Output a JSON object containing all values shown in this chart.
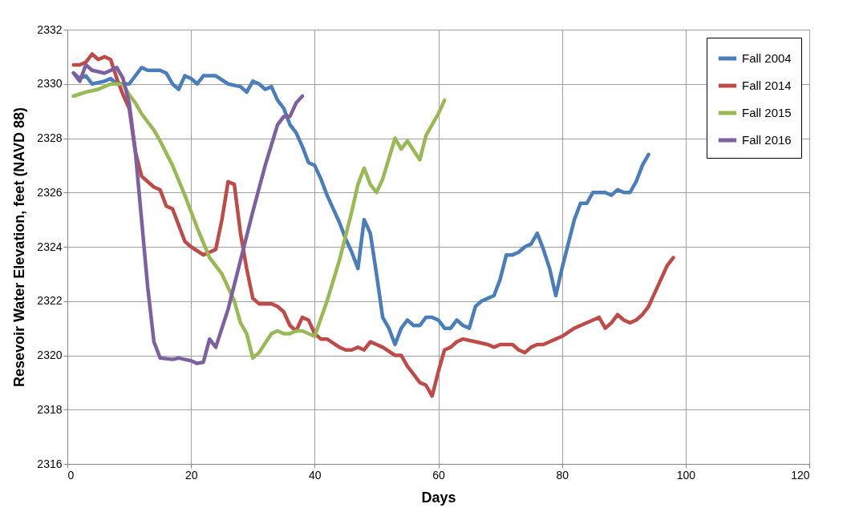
{
  "chart_data": {
    "type": "line",
    "xlabel": "Days",
    "ylabel": "Resevoir Water Elevation, feet (NAVD 88)",
    "xlim": [
      0,
      120
    ],
    "xticks": [
      0,
      20,
      40,
      60,
      80,
      100,
      120
    ],
    "ylim": [
      2316,
      2332
    ],
    "yticks": [
      2316,
      2318,
      2320,
      2322,
      2324,
      2326,
      2328,
      2330,
      2332
    ],
    "grid": true,
    "legend": "top right",
    "marker": "none",
    "line_style": "solid",
    "series": [
      {
        "name": "Fall 2004",
        "color": "#4a7ebb",
        "x": [
          1,
          2,
          3,
          4,
          6,
          7,
          8,
          9,
          10,
          12,
          13,
          15,
          16,
          17,
          18,
          19,
          20,
          21,
          22,
          24,
          26,
          28,
          29,
          30,
          31,
          32,
          33,
          34,
          35,
          36,
          37,
          38,
          39,
          40,
          41,
          42,
          44,
          45,
          46,
          47,
          48,
          49,
          50,
          51,
          52,
          53,
          54,
          55,
          56,
          57,
          58,
          59,
          60,
          61,
          62,
          63,
          64,
          65,
          66,
          67,
          68,
          69,
          70,
          71,
          72,
          73,
          74,
          75,
          76,
          77,
          78,
          79,
          80,
          81,
          82,
          83,
          84,
          85,
          86,
          87,
          88,
          89,
          90,
          91,
          92,
          93,
          94
        ],
        "values": [
          2330.4,
          2330.2,
          2330.3,
          2330.0,
          2330.1,
          2330.2,
          2330.0,
          2330.0,
          2330.0,
          2330.6,
          2330.5,
          2330.5,
          2330.4,
          2330.0,
          2329.8,
          2330.3,
          2330.2,
          2330.0,
          2330.3,
          2330.3,
          2330.0,
          2329.9,
          2329.7,
          2330.1,
          2330.0,
          2329.8,
          2329.9,
          2329.4,
          2329.1,
          2328.5,
          2328.2,
          2327.7,
          2327.1,
          2327.0,
          2326.5,
          2325.9,
          2324.9,
          2324.3,
          2323.8,
          2323.2,
          2325.0,
          2324.5,
          2323.0,
          2321.4,
          2321.0,
          2320.4,
          2321.0,
          2321.3,
          2321.1,
          2321.1,
          2321.4,
          2321.4,
          2321.3,
          2321.0,
          2321.0,
          2321.3,
          2321.1,
          2321.0,
          2321.8,
          2322.0,
          2322.1,
          2322.2,
          2322.8,
          2323.7,
          2323.7,
          2323.8,
          2324.0,
          2324.1,
          2324.5,
          2323.9,
          2323.2,
          2322.2,
          2323.2,
          2324.1,
          2325.0,
          2325.6,
          2325.6,
          2326.0,
          2326.0,
          2326.0,
          2325.9,
          2326.1,
          2326.0,
          2326.0,
          2326.4,
          2327.0,
          2327.4
        ]
      },
      {
        "name": "Fall 2014",
        "color": "#be4b48",
        "x": [
          1,
          2,
          3,
          4,
          5,
          6,
          7,
          8,
          9,
          10,
          11,
          12,
          13,
          14,
          15,
          16,
          17,
          18,
          19,
          20,
          22,
          23,
          24,
          25,
          26,
          27,
          28,
          29,
          30,
          31,
          33,
          34,
          35,
          36,
          37,
          38,
          39,
          40,
          41,
          42,
          44,
          45,
          46,
          47,
          48,
          49,
          51,
          53,
          54,
          55,
          56,
          57,
          58,
          59,
          60,
          61,
          62,
          63,
          64,
          66,
          68,
          69,
          70,
          72,
          73,
          74,
          75,
          76,
          77,
          78,
          79,
          80,
          82,
          83,
          85,
          86,
          87,
          88,
          89,
          90,
          91,
          92,
          93,
          94,
          95,
          96,
          97,
          98
        ],
        "values": [
          2330.7,
          2330.7,
          2330.8,
          2331.1,
          2330.9,
          2331.0,
          2330.9,
          2330.2,
          2329.6,
          2329.1,
          2327.5,
          2326.6,
          2326.4,
          2326.2,
          2326.1,
          2325.5,
          2325.4,
          2324.8,
          2324.2,
          2324.0,
          2323.7,
          2323.8,
          2323.9,
          2325.0,
          2326.4,
          2326.3,
          2324.5,
          2323.2,
          2322.1,
          2321.9,
          2321.9,
          2321.8,
          2321.6,
          2321.1,
          2320.9,
          2321.4,
          2321.3,
          2320.8,
          2320.6,
          2320.6,
          2320.3,
          2320.2,
          2320.2,
          2320.3,
          2320.2,
          2320.5,
          2320.3,
          2320.0,
          2320.0,
          2319.6,
          2319.3,
          2319.0,
          2318.9,
          2318.5,
          2319.4,
          2320.2,
          2320.3,
          2320.5,
          2320.6,
          2320.5,
          2320.4,
          2320.3,
          2320.4,
          2320.4,
          2320.2,
          2320.1,
          2320.3,
          2320.4,
          2320.4,
          2320.5,
          2320.6,
          2320.7,
          2321.0,
          2321.1,
          2321.3,
          2321.4,
          2321.0,
          2321.2,
          2321.5,
          2321.3,
          2321.2,
          2321.3,
          2321.5,
          2321.8,
          2322.3,
          2322.8,
          2323.3,
          2323.6
        ]
      },
      {
        "name": "Fall 2015",
        "color": "#98b954",
        "x": [
          1,
          3,
          5,
          7,
          8,
          9,
          10,
          11,
          12,
          14,
          15,
          17,
          19,
          21,
          23,
          25,
          27,
          28,
          29,
          30,
          31,
          33,
          34,
          35,
          36,
          37,
          38,
          40,
          42,
          44,
          46,
          47,
          48,
          49,
          50,
          51,
          53,
          54,
          55,
          57,
          58,
          60,
          61
        ],
        "values": [
          2329.55,
          2329.7,
          2329.8,
          2330.0,
          2330.0,
          2330.0,
          2329.6,
          2329.3,
          2328.9,
          2328.3,
          2327.9,
          2327.0,
          2325.9,
          2324.7,
          2323.6,
          2323.0,
          2322.0,
          2321.2,
          2320.8,
          2319.9,
          2320.1,
          2320.8,
          2320.9,
          2320.8,
          2320.8,
          2320.9,
          2320.9,
          2320.7,
          2322.0,
          2323.5,
          2325.3,
          2326.3,
          2326.9,
          2326.3,
          2326.0,
          2326.5,
          2328.0,
          2327.6,
          2327.9,
          2327.2,
          2328.1,
          2328.9,
          2329.4
        ]
      },
      {
        "name": "Fall 2016",
        "color": "#7d60a0",
        "x": [
          1,
          2,
          3,
          4,
          6,
          8,
          9,
          10,
          11,
          12,
          13,
          14,
          15,
          17,
          18,
          19,
          20,
          21,
          22,
          23,
          24,
          26,
          28,
          30,
          32,
          34,
          35,
          36,
          37,
          38
        ],
        "values": [
          2330.4,
          2330.1,
          2330.7,
          2330.5,
          2330.4,
          2330.6,
          2330.2,
          2329.3,
          2327.5,
          2325.0,
          2322.5,
          2320.5,
          2319.9,
          2319.85,
          2319.9,
          2319.85,
          2319.8,
          2319.7,
          2319.75,
          2320.6,
          2320.3,
          2321.7,
          2323.5,
          2325.3,
          2327.0,
          2328.5,
          2328.8,
          2328.8,
          2329.3,
          2329.55
        ]
      }
    ]
  }
}
